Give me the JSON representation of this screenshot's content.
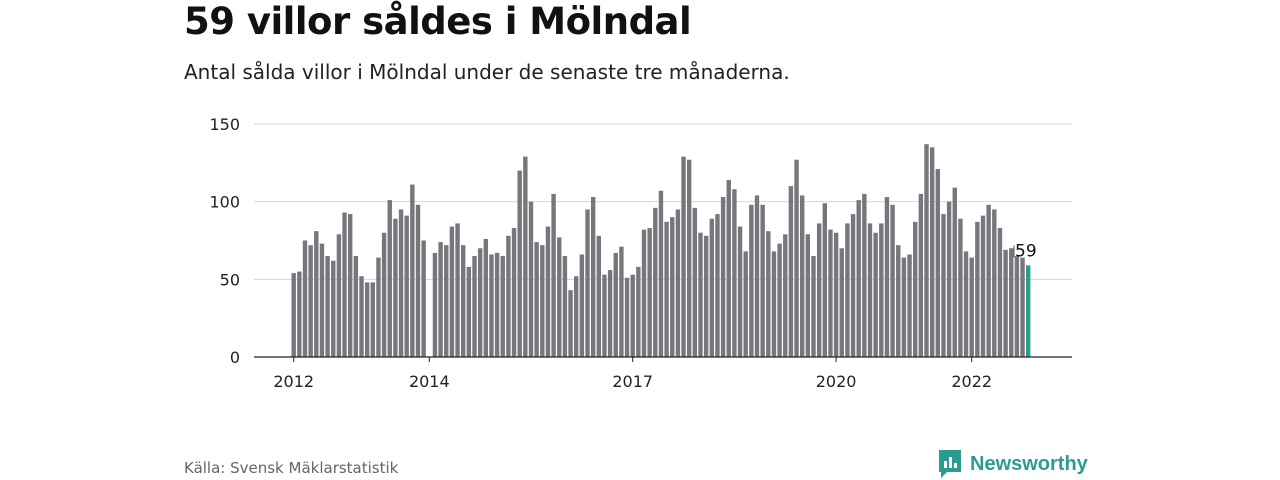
{
  "title": "59 villor såldes i Mölndal",
  "subtitle": "Antal sålda villor i Mölndal under de senaste tre månaderna.",
  "source": "Källa: Svensk Mäklarstatistik",
  "brand": "Newsworthy",
  "colors": {
    "bar": "#76767d",
    "highlight": "#2a9d8f",
    "grid": "#d6d6d6",
    "axis": "#222222",
    "brand": "#2a9d8f"
  },
  "chart_data": {
    "type": "bar",
    "title": "59 villor såldes i Mölndal",
    "xlabel": "",
    "ylabel": "",
    "ylim": [
      0,
      150
    ],
    "yticks": [
      "0",
      "50",
      "100",
      "150"
    ],
    "xticks": [
      "2012",
      "2014",
      "2017",
      "2020",
      "2022"
    ],
    "grid": true,
    "highlight_last": true,
    "last_label": "59",
    "values": [
      54,
      55,
      75,
      72,
      81,
      73,
      65,
      62,
      79,
      93,
      92,
      65,
      52,
      48,
      48,
      64,
      80,
      101,
      89,
      95,
      91,
      111,
      98,
      75,
      null,
      67,
      74,
      72,
      84,
      86,
      72,
      58,
      65,
      70,
      76,
      66,
      67,
      65,
      78,
      83,
      120,
      129,
      100,
      74,
      72,
      84,
      105,
      77,
      65,
      43,
      52,
      66,
      95,
      103,
      78,
      53,
      56,
      67,
      71,
      51,
      53,
      58,
      82,
      83,
      96,
      107,
      87,
      90,
      95,
      129,
      127,
      96,
      80,
      78,
      89,
      92,
      103,
      114,
      108,
      84,
      68,
      98,
      104,
      98,
      81,
      68,
      73,
      79,
      110,
      127,
      104,
      79,
      65,
      86,
      99,
      82,
      80,
      70,
      86,
      92,
      101,
      105,
      86,
      80,
      86,
      103,
      98,
      72,
      64,
      66,
      87,
      105,
      137,
      135,
      121,
      92,
      100,
      109,
      89,
      68,
      64,
      87,
      91,
      98,
      95,
      83,
      69,
      70,
      65,
      64,
      59
    ]
  }
}
